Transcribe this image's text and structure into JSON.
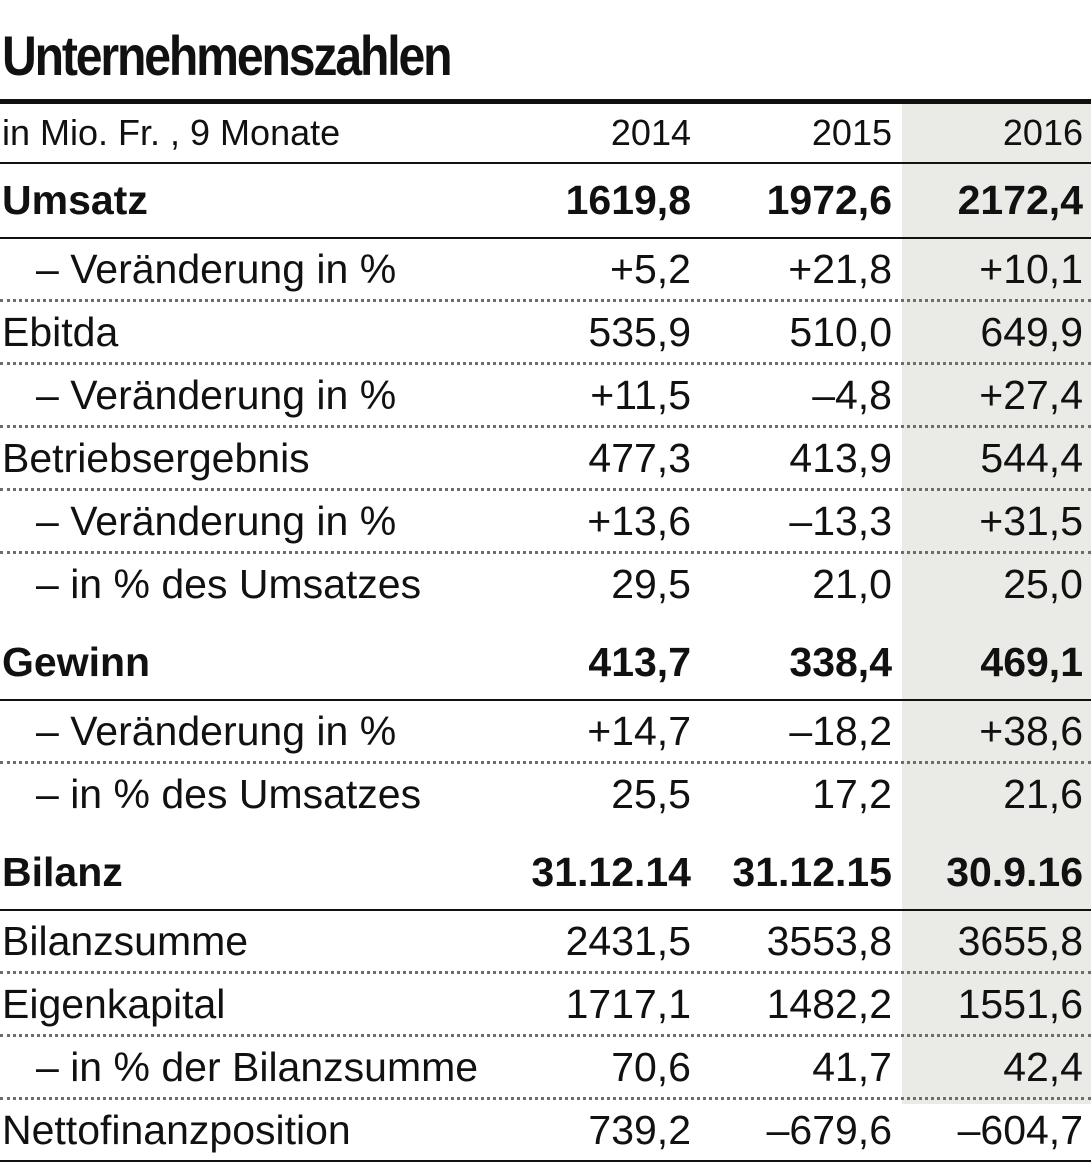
{
  "title": "Unternehmenszahlen",
  "header": {
    "unit": "in Mio. Fr. , 9 Monate",
    "years": [
      "2014",
      "2015",
      "2016"
    ]
  },
  "highlight_color": "#eaeae6",
  "rows": [
    {
      "label": "Umsatz",
      "values": [
        "1619,8",
        "1972,6",
        "2172,4"
      ]
    },
    {
      "label": "– Veränderung in %",
      "values": [
        "+5,2",
        "+21,8",
        "+10,1"
      ]
    },
    {
      "label": "Ebitda",
      "values": [
        "535,9",
        "510,0",
        "649,9"
      ]
    },
    {
      "label": "– Veränderung in %",
      "values": [
        "+11,5",
        "–4,8",
        "+27,4"
      ]
    },
    {
      "label": "Betriebsergebnis",
      "values": [
        "477,3",
        "413,9",
        "544,4"
      ]
    },
    {
      "label": "– Veränderung in %",
      "values": [
        "+13,6",
        "–13,3",
        "+31,5"
      ]
    },
    {
      "label": "– in % des Umsatzes",
      "values": [
        "29,5",
        "21,0",
        "25,0"
      ]
    },
    {
      "label": "Gewinn",
      "values": [
        "413,7",
        "338,4",
        "469,1"
      ]
    },
    {
      "label": "– Veränderung in %",
      "values": [
        "+14,7",
        "–18,2",
        "+38,6"
      ]
    },
    {
      "label": "– in % des Umsatzes",
      "values": [
        "25,5",
        "17,2",
        "21,6"
      ]
    },
    {
      "label": "Bilanz",
      "values": [
        "31.12.14",
        "31.12.15",
        "30.9.16"
      ]
    },
    {
      "label": "Bilanzsumme",
      "values": [
        "2431,5",
        "3553,8",
        "3655,8"
      ]
    },
    {
      "label": "Eigenkapital",
      "values": [
        "1717,1",
        "1482,2",
        "1551,6"
      ]
    },
    {
      "label": "– in % der Bilanzsumme",
      "values": [
        "70,6",
        "41,7",
        "42,4"
      ]
    },
    {
      "label": "Nettofinanzposition",
      "values": [
        "739,2",
        "–679,6",
        "–604,7"
      ]
    }
  ]
}
